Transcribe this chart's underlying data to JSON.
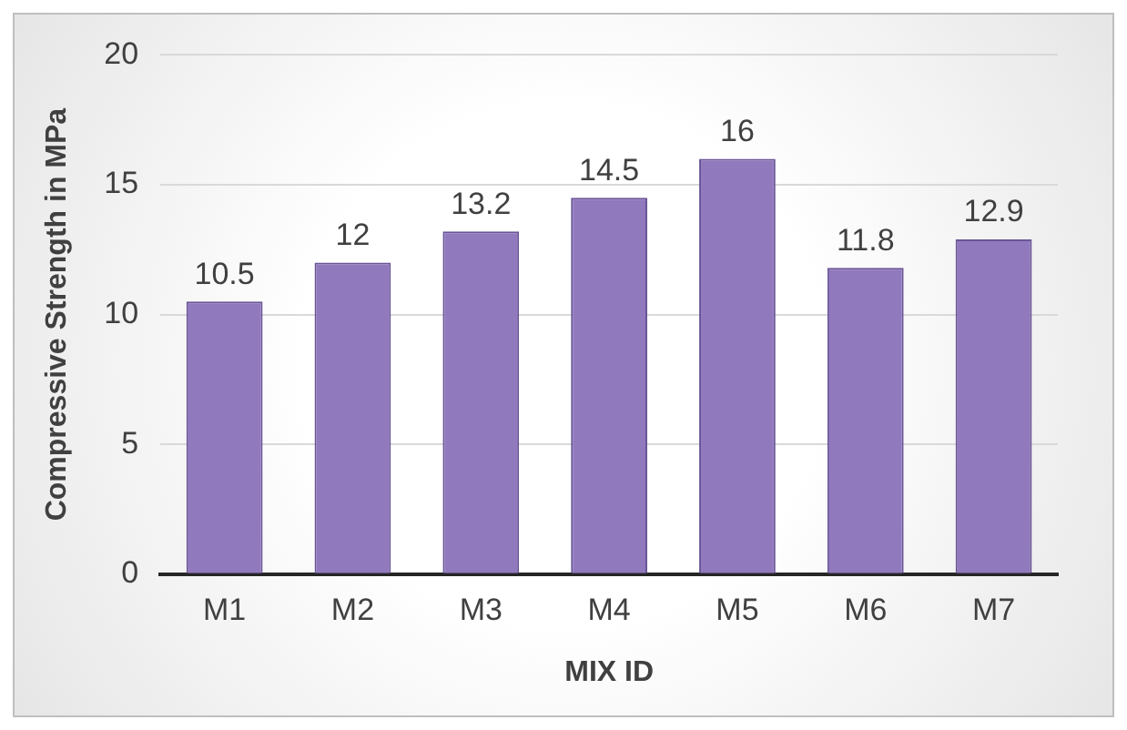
{
  "chart_data": {
    "type": "bar",
    "categories": [
      "M1",
      "M2",
      "M3",
      "M4",
      "M5",
      "M6",
      "M7"
    ],
    "values": [
      10.5,
      12,
      13.2,
      14.5,
      16,
      11.8,
      12.9
    ],
    "color": "#9179bd",
    "xlabel": "MIX ID",
    "ylabel": "Compressive Strength in MPa",
    "ylim": [
      0,
      20
    ],
    "yticks": [
      0,
      5,
      10,
      15,
      20
    ],
    "grid": "y",
    "data_labels": true,
    "legend": false
  }
}
